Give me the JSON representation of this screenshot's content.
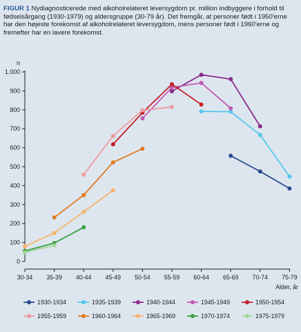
{
  "caption": {
    "label": "FIGUR 1",
    "text": "Nydiagnosticerede med alkoholrelateret leversygdom pr. million indbyggere i forhold til fødselsårgang (1930-1979) og aldersgruppe (30-79 år). Det fremgår, at personer født i 1950'erne har den højeste forekomst af alkoholrelateret leversygdom, mens personer født i 1960'erne og fremefter har en lavere forekomst."
  },
  "chart_data": {
    "type": "line",
    "ylabel": "n",
    "xlabel": "Alder, år",
    "ylim": [
      0,
      1000
    ],
    "yticks": [
      0,
      100,
      200,
      300,
      400,
      500,
      600,
      700,
      800,
      900,
      1000
    ],
    "ytick_labels": [
      "0",
      "100",
      "200",
      "300",
      "400",
      "500",
      "600",
      "700",
      "800",
      "900",
      "1.000"
    ],
    "categories": [
      "30-34",
      "35-39",
      "40-44",
      "45-49",
      "50-54",
      "55-59",
      "60-64",
      "65-69",
      "70-74",
      "75-79"
    ],
    "legend_position": "bottom",
    "series": [
      {
        "name": "1930-1934",
        "color": "#2a4a8c",
        "values": [
          null,
          null,
          null,
          null,
          null,
          null,
          null,
          558,
          475,
          385
        ]
      },
      {
        "name": "1935-1939",
        "color": "#57c7ec",
        "values": [
          null,
          null,
          null,
          null,
          null,
          null,
          792,
          790,
          668,
          448
        ]
      },
      {
        "name": "1940-1944",
        "color": "#8a2a8a",
        "values": [
          null,
          null,
          null,
          null,
          null,
          898,
          985,
          962,
          713,
          null
        ]
      },
      {
        "name": "1945-1949",
        "color": "#c45ab3",
        "values": [
          null,
          null,
          null,
          null,
          755,
          918,
          942,
          808,
          null,
          null
        ]
      },
      {
        "name": "1950-1954",
        "color": "#c32126",
        "values": [
          null,
          null,
          null,
          618,
          785,
          935,
          828,
          null,
          null,
          null
        ]
      },
      {
        "name": "1955-1959",
        "color": "#ee9aa0",
        "values": [
          null,
          null,
          458,
          662,
          798,
          815,
          null,
          null,
          null,
          null
        ]
      },
      {
        "name": "1960-1964",
        "color": "#e07a1f",
        "values": [
          null,
          232,
          350,
          523,
          595,
          null,
          null,
          null,
          null,
          null
        ]
      },
      {
        "name": "1965-1969",
        "color": "#f6b46a",
        "values": [
          80,
          150,
          262,
          375,
          null,
          null,
          null,
          null,
          null,
          null
        ]
      },
      {
        "name": "1970-1974",
        "color": "#3aa040",
        "values": [
          55,
          97,
          180,
          null,
          null,
          null,
          null,
          null,
          null,
          null
        ]
      },
      {
        "name": "1975-1979",
        "color": "#a5d59b",
        "values": [
          48,
          85,
          null,
          null,
          null,
          null,
          null,
          null,
          null,
          null
        ]
      }
    ]
  }
}
